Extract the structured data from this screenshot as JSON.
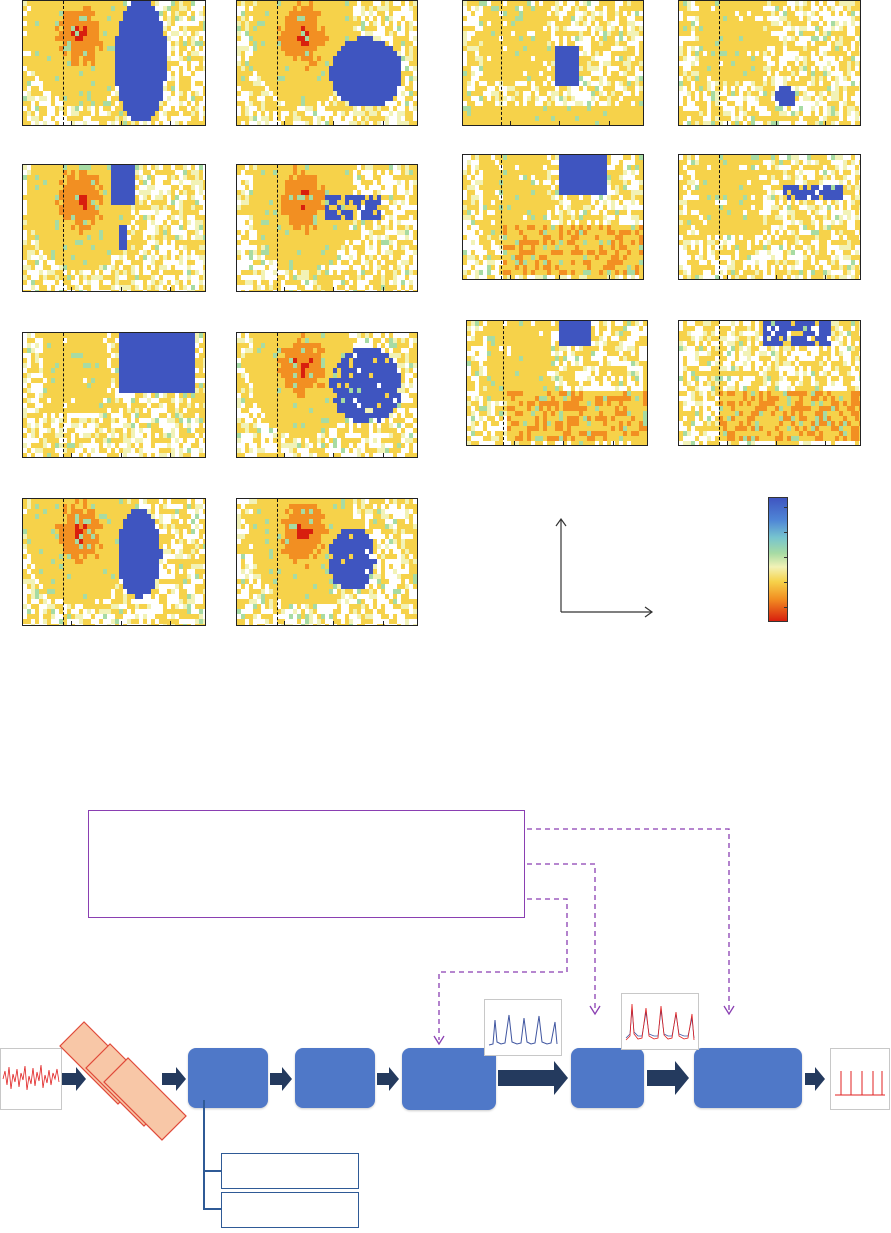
{
  "colors": {
    "colormap": [
      "#d81f0e",
      "#f28f22",
      "#f6d24a",
      "#f2f2b6",
      "#a7dba3",
      "#77c4cf",
      "#4f86d6",
      "#3f55c0"
    ],
    "block": "#4f78c8",
    "dark_arrow": "#243a5e",
    "purple": "#8a3fb2",
    "preprocess_red": "#e04a3a",
    "preprocess_fill": "#f8c7a7",
    "signal_red": "#e02020",
    "signal_blue": "#3f55a0",
    "subbox_border": "#2f5a96"
  },
  "heatmap_grid": {
    "panel_count": 14,
    "rows": [
      "row-1",
      "row-2",
      "row-3",
      "row-4"
    ],
    "note_colorbar": "colorbar"
  },
  "pipeline": {
    "blocks": [
      "block-1",
      "block-2",
      "block-3",
      "block-4",
      "block-5"
    ],
    "preprocess_cards": 3
  }
}
